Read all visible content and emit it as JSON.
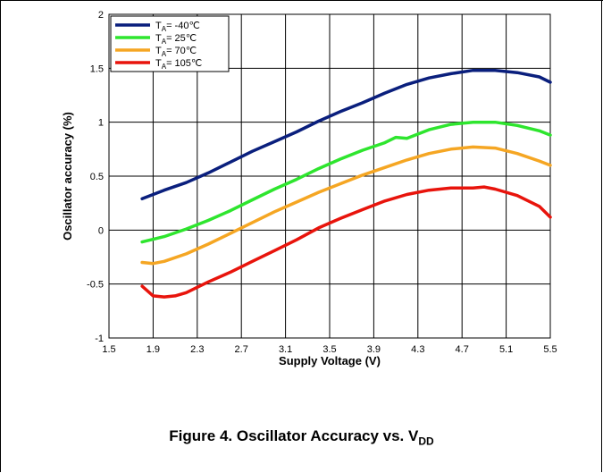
{
  "chart_data": {
    "type": "line",
    "xlabel": "Supply Voltage (V)",
    "ylabel": "Oscillator accuracy (%)",
    "xlim": [
      1.5,
      5.5
    ],
    "ylim": [
      -1,
      2
    ],
    "xticks": [
      1.5,
      1.9,
      2.3,
      2.7,
      3.1,
      3.5,
      3.9,
      4.3,
      4.7,
      5.1,
      5.5
    ],
    "yticks": [
      -1,
      -0.5,
      0,
      0.5,
      1,
      1.5,
      2
    ],
    "xtick_labels": [
      "1.5",
      "1.9",
      "2.3",
      "2.7",
      "3.1",
      "3.5",
      "3.9",
      "4.3",
      "4.7",
      "5.1",
      "5.5"
    ],
    "ytick_labels": [
      "-1",
      "-0.5",
      "0",
      "0.5",
      "1",
      "1.5",
      "2"
    ],
    "grid": true,
    "legend_position": "top-left",
    "series": [
      {
        "name": "TA= -40°C",
        "label_main": "T",
        "label_sub": "A",
        "label_rest": "= -40℃",
        "color": "#0a1f7d",
        "x": [
          1.8,
          2.0,
          2.2,
          2.4,
          2.6,
          2.8,
          3.0,
          3.2,
          3.4,
          3.6,
          3.8,
          4.0,
          4.2,
          4.4,
          4.6,
          4.8,
          4.9,
          5.0,
          5.2,
          5.4,
          5.5
        ],
        "y": [
          0.29,
          0.37,
          0.44,
          0.53,
          0.63,
          0.73,
          0.82,
          0.91,
          1.01,
          1.1,
          1.18,
          1.27,
          1.35,
          1.41,
          1.45,
          1.48,
          1.48,
          1.48,
          1.46,
          1.42,
          1.37
        ]
      },
      {
        "name": "TA= 25°C",
        "label_main": "T",
        "label_sub": "A",
        "label_rest": "= 25℃",
        "color": "#2ee52e",
        "x": [
          1.8,
          2.0,
          2.2,
          2.4,
          2.6,
          2.8,
          3.0,
          3.2,
          3.4,
          3.6,
          3.8,
          4.0,
          4.1,
          4.2,
          4.4,
          4.6,
          4.8,
          5.0,
          5.2,
          5.4,
          5.5
        ],
        "y": [
          -0.11,
          -0.06,
          0.01,
          0.09,
          0.18,
          0.28,
          0.38,
          0.47,
          0.57,
          0.66,
          0.74,
          0.81,
          0.86,
          0.85,
          0.93,
          0.98,
          1.0,
          1.0,
          0.97,
          0.92,
          0.88
        ]
      },
      {
        "name": "TA= 70°C",
        "label_main": "T",
        "label_sub": "A",
        "label_rest": "= 70℃",
        "color": "#f5a623",
        "x": [
          1.8,
          1.9,
          2.0,
          2.2,
          2.4,
          2.6,
          2.8,
          3.0,
          3.2,
          3.4,
          3.6,
          3.8,
          4.0,
          4.2,
          4.4,
          4.6,
          4.8,
          5.0,
          5.2,
          5.4,
          5.5
        ],
        "y": [
          -0.3,
          -0.31,
          -0.29,
          -0.22,
          -0.13,
          -0.03,
          0.07,
          0.17,
          0.26,
          0.35,
          0.43,
          0.51,
          0.58,
          0.65,
          0.71,
          0.75,
          0.77,
          0.76,
          0.71,
          0.64,
          0.6
        ]
      },
      {
        "name": "TA= 105°C",
        "label_main": "T",
        "label_sub": "A",
        "label_rest": "= 105℃",
        "color": "#e8140c",
        "x": [
          1.8,
          1.9,
          2.0,
          2.1,
          2.2,
          2.4,
          2.6,
          2.8,
          3.0,
          3.2,
          3.4,
          3.6,
          3.8,
          4.0,
          4.2,
          4.4,
          4.6,
          4.8,
          4.9,
          5.0,
          5.2,
          5.4,
          5.5
        ],
        "y": [
          -0.52,
          -0.61,
          -0.62,
          -0.61,
          -0.58,
          -0.48,
          -0.39,
          -0.29,
          -0.19,
          -0.09,
          0.02,
          0.11,
          0.19,
          0.27,
          0.33,
          0.37,
          0.39,
          0.39,
          0.4,
          0.38,
          0.32,
          0.22,
          0.12
        ]
      }
    ]
  },
  "caption": {
    "main": "Figure 4. Oscillator Accuracy vs. V",
    "sub": "DD"
  }
}
